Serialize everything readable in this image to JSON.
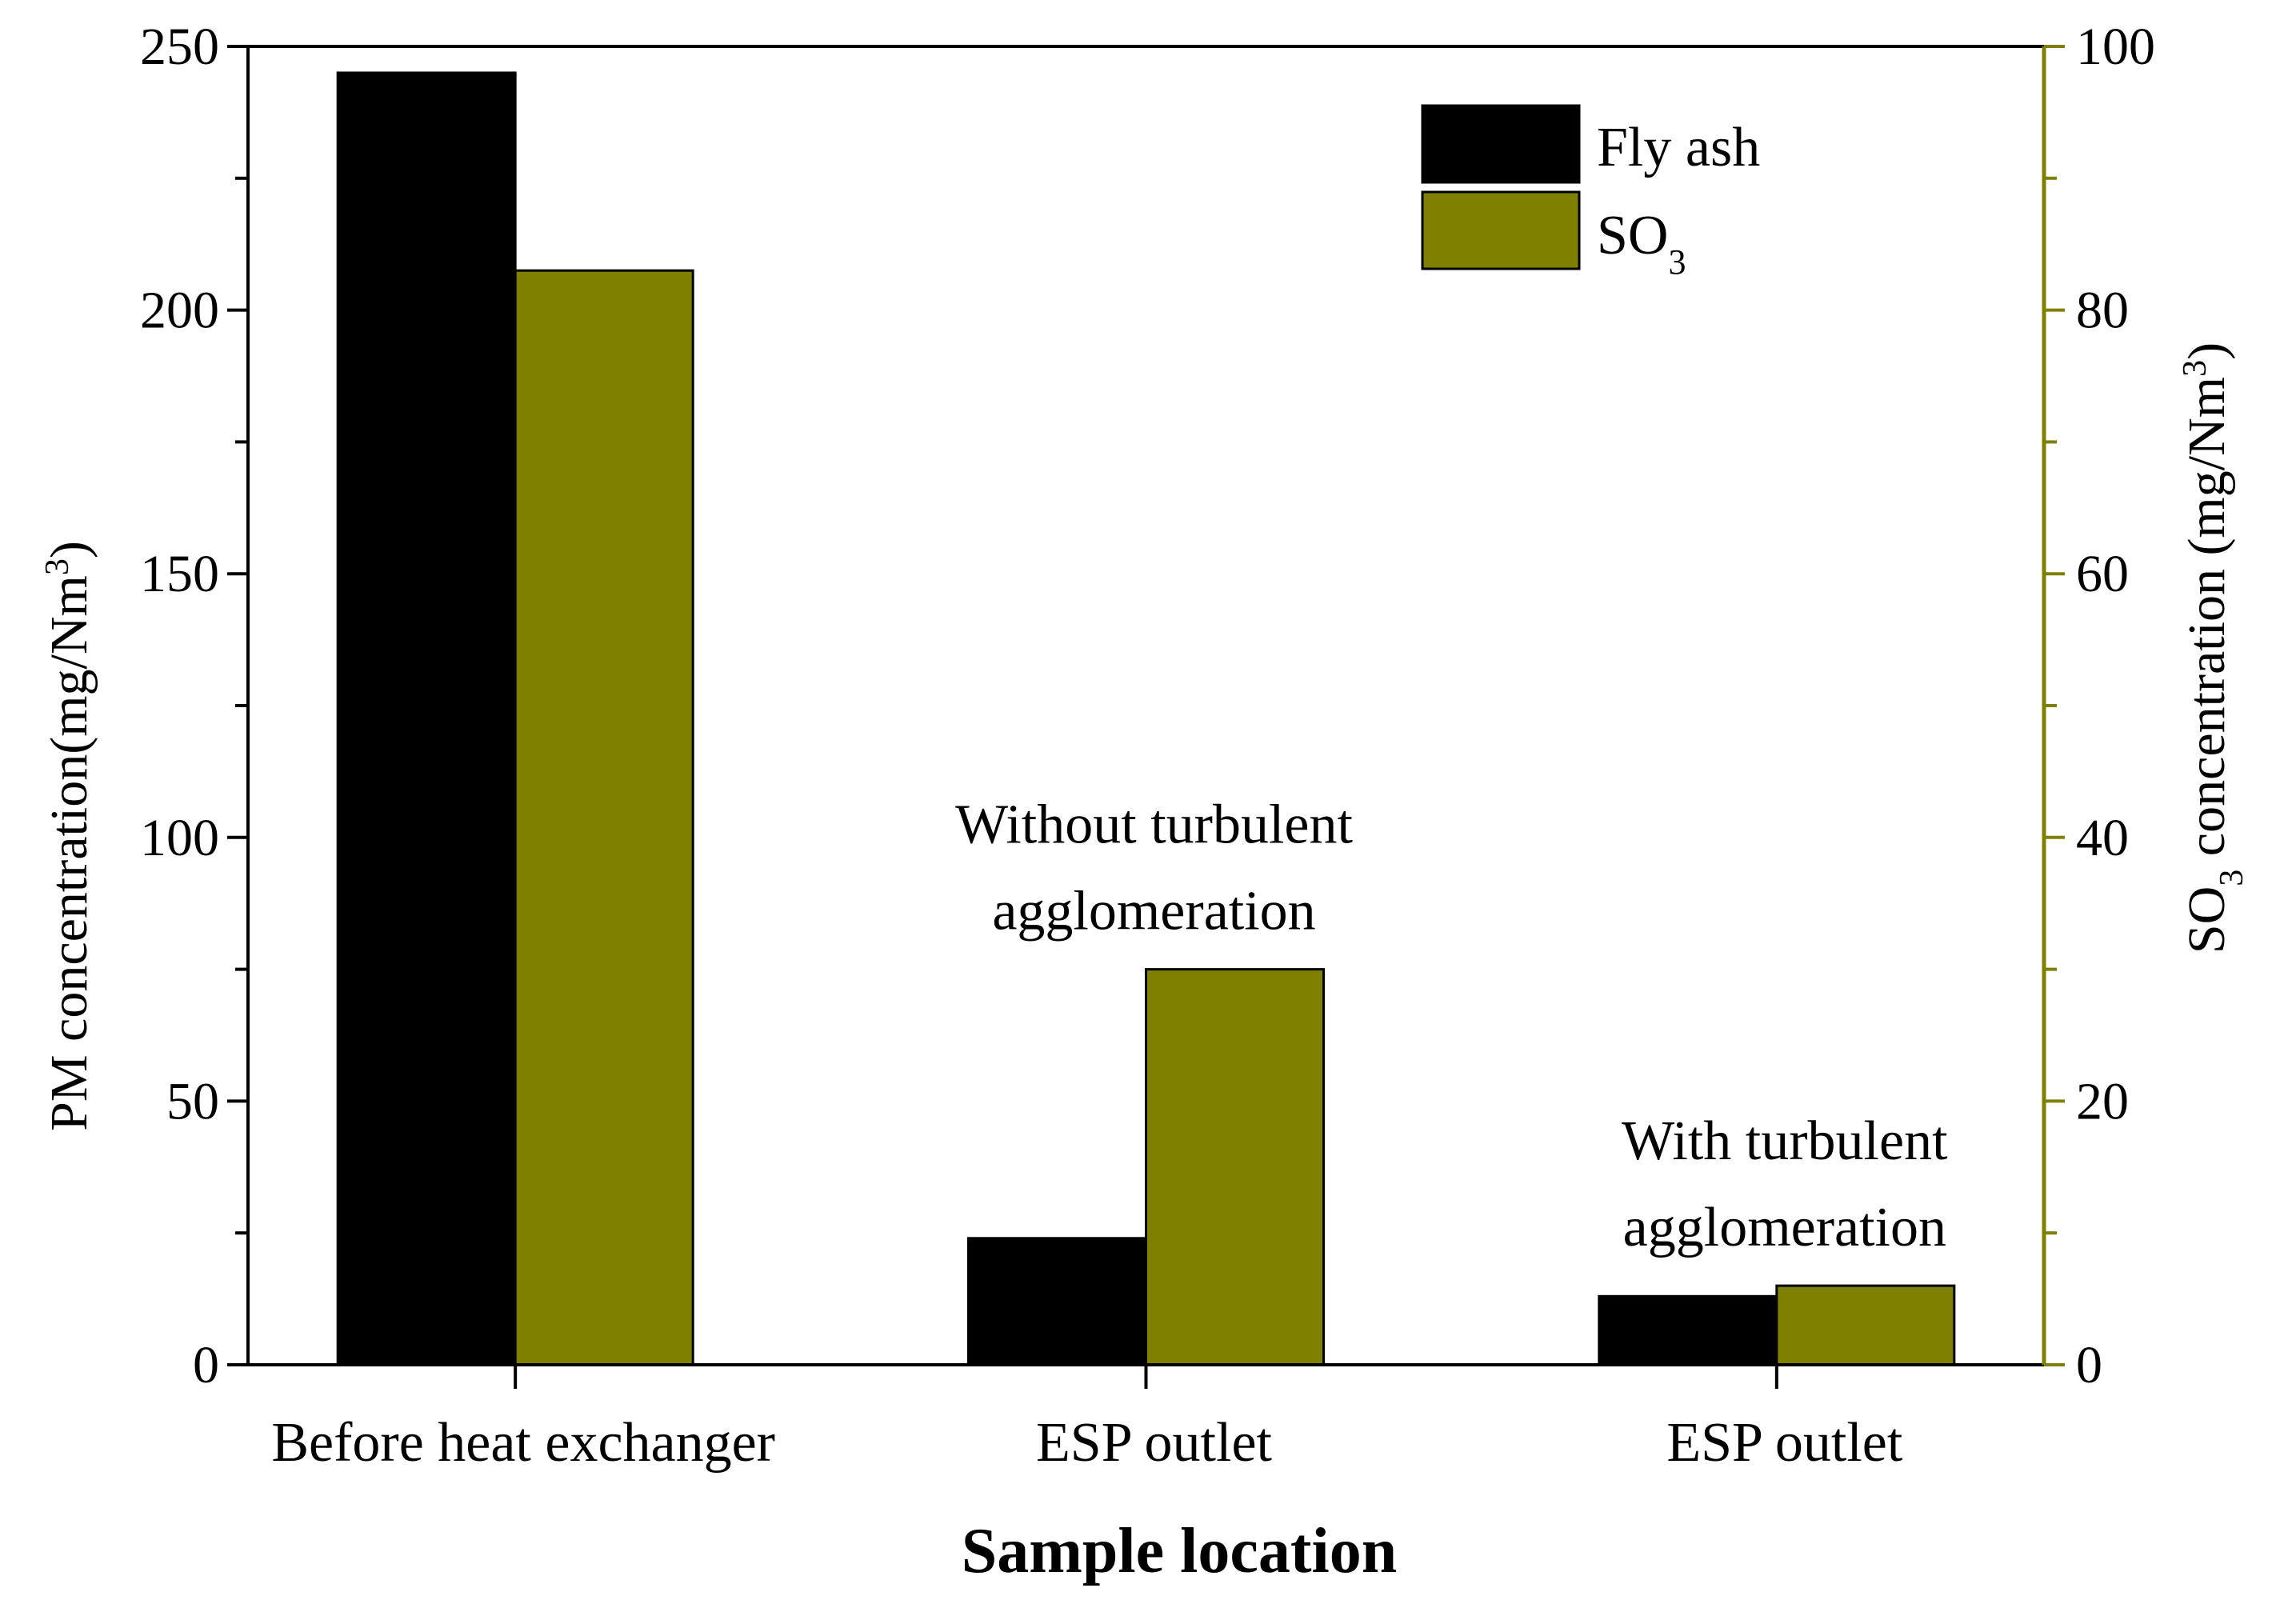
{
  "chart_data": {
    "type": "bar",
    "title": "",
    "xlabel": "Sample location",
    "categories": [
      "Before heat exchanger",
      "ESP outlet",
      "ESP outlet"
    ],
    "annotations": [
      {
        "category_index": 1,
        "lines": [
          "Without turbulent",
          "agglomeration"
        ]
      },
      {
        "category_index": 2,
        "lines": [
          "With turbulent",
          "agglomeration"
        ]
      }
    ],
    "series": [
      {
        "name": "Fly ash",
        "axis": "left",
        "color": "#000000",
        "values": [
          245,
          24,
          13
        ]
      },
      {
        "name": "SO3",
        "axis": "right",
        "color": "#808000",
        "values": [
          83,
          30,
          6
        ]
      }
    ],
    "legend_entries": [
      {
        "text": "Fly ash",
        "sub": ""
      },
      {
        "text": "SO",
        "sub": "3"
      }
    ],
    "legend_position": "top-right",
    "y_left": {
      "label": "PM concentration(mg/Nm",
      "label_sup": "3",
      "label_close": ")",
      "ylim": [
        0,
        250
      ],
      "ticks": [
        0,
        50,
        100,
        150,
        200,
        250
      ],
      "minor_step": 25,
      "color": "#000000"
    },
    "y_right": {
      "label_pre": "SO",
      "label_sub": "3",
      "label_mid": " concentration (mg/Nm",
      "label_sup": "3",
      "label_close": ")",
      "ylim": [
        0,
        100
      ],
      "ticks": [
        0,
        20,
        40,
        60,
        80,
        100
      ],
      "minor_step": 10,
      "color": "#808000"
    },
    "grid": false
  }
}
